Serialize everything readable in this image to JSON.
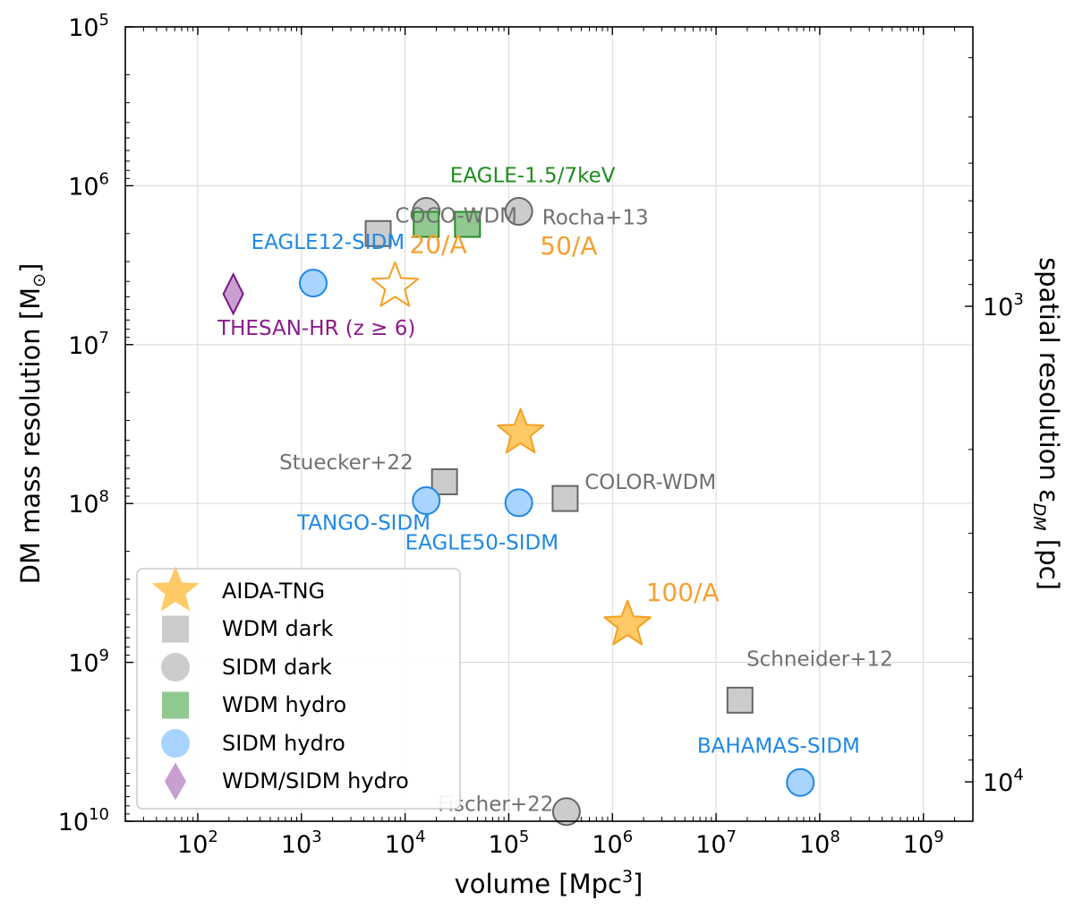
{
  "chart_data": {
    "type": "scatter",
    "xlabel": "volume [Mpc",
    "xlabel_sup": "3",
    "xlabel_end": "]",
    "ylabel": "DM mass resolution [M",
    "ylabel_end": "]",
    "ylabel_right": "spatial resolution ε",
    "ylabel_right_sub": "DM",
    "ylabel_right_end": " [pc]",
    "x_scale": "log",
    "y_scale": "log",
    "y_inverted": true,
    "xlim": [
      20,
      3000000000
    ],
    "ylim": [
      100000,
      10000000000
    ],
    "grid": true,
    "legend_position": "lower-left",
    "x_ticks": [
      {
        "value": 100,
        "base": "10",
        "exp": "2"
      },
      {
        "value": 1000,
        "base": "10",
        "exp": "3"
      },
      {
        "value": 10000,
        "base": "10",
        "exp": "4"
      },
      {
        "value": 100000,
        "base": "10",
        "exp": "5"
      },
      {
        "value": 1000000,
        "base": "10",
        "exp": "6"
      },
      {
        "value": 10000000,
        "base": "10",
        "exp": "7"
      },
      {
        "value": 100000000,
        "base": "10",
        "exp": "8"
      },
      {
        "value": 1000000000,
        "base": "10",
        "exp": "9"
      }
    ],
    "y_ticks": [
      {
        "value": 100000,
        "base": "10",
        "exp": "5"
      },
      {
        "value": 1000000,
        "base": "10",
        "exp": "6"
      },
      {
        "value": 10000000,
        "base": "10",
        "exp": "7"
      },
      {
        "value": 100000000,
        "base": "10",
        "exp": "8"
      },
      {
        "value": 1000000000,
        "base": "10",
        "exp": "9"
      },
      {
        "value": 10000000000,
        "base": "10",
        "exp": "10"
      }
    ],
    "y_right_ticks": [
      {
        "pc": 1000,
        "base": "10",
        "exp": "3"
      },
      {
        "pc": 10000,
        "base": "10",
        "exp": "4"
      }
    ],
    "colors": {
      "aida": "#ffc966",
      "aida_edge": "#f5a020",
      "aida_label": "#f5a030",
      "grey_fill": "#cccccc",
      "grey_edge": "#666666",
      "grey_label": "#707070",
      "green_fill": "#90c990",
      "green_edge": "#2a8a2a",
      "green_label": "#1e8c1e",
      "blue_fill": "#a8d4ff",
      "blue_edge": "#1e88e5",
      "blue_label": "#1e88e5",
      "purple_fill": "#c79fd0",
      "purple_edge": "#7b1a85",
      "purple_label": "#8b1a8b"
    },
    "legend": [
      {
        "label": "AIDA-TNG",
        "marker": "star",
        "fill": "aida",
        "edge": "none"
      },
      {
        "label": "WDM dark",
        "marker": "square",
        "fill": "grey_fill",
        "edge": "none"
      },
      {
        "label": "SIDM dark",
        "marker": "circle",
        "fill": "grey_fill",
        "edge": "none"
      },
      {
        "label": "WDM hydro",
        "marker": "square",
        "fill": "green_fill",
        "edge": "none"
      },
      {
        "label": "SIDM hydro",
        "marker": "circle",
        "fill": "blue_fill",
        "edge": "none"
      },
      {
        "label": "WDM/SIDM hydro",
        "marker": "diamond",
        "fill": "purple_fill",
        "edge": "none"
      }
    ],
    "points": [
      {
        "x": 8000,
        "y": 4300000,
        "marker": "star",
        "fill": "none",
        "edge": "aida_edge"
      },
      {
        "x": 130000,
        "y": 36000000,
        "marker": "star",
        "fill": "aida",
        "edge": "aida_edge"
      },
      {
        "x": 1400000,
        "y": 580000000,
        "marker": "star",
        "fill": "aida",
        "edge": "aida_edge"
      },
      {
        "x": 5500,
        "y": 2000000,
        "marker": "square",
        "fill": "grey_fill",
        "edge": "grey_edge"
      },
      {
        "x": 24000,
        "y": 73000000,
        "marker": "square",
        "fill": "grey_fill",
        "edge": "grey_edge"
      },
      {
        "x": 350000,
        "y": 93000000,
        "marker": "square",
        "fill": "grey_fill",
        "edge": "grey_edge"
      },
      {
        "x": 17000000,
        "y": 1730000000,
        "marker": "square",
        "fill": "grey_fill",
        "edge": "grey_edge"
      },
      {
        "x": 16000,
        "y": 1450000,
        "marker": "circle",
        "fill": "grey_fill",
        "edge": "grey_edge"
      },
      {
        "x": 125000,
        "y": 1450000,
        "marker": "circle",
        "fill": "grey_fill",
        "edge": "grey_edge"
      },
      {
        "x": 360000,
        "y": 8700000000,
        "marker": "circle",
        "fill": "grey_fill",
        "edge": "grey_edge"
      },
      {
        "x": 16000,
        "y": 1750000,
        "marker": "square",
        "fill": "green_fill",
        "edge": "green_edge"
      },
      {
        "x": 40000,
        "y": 1750000,
        "marker": "square",
        "fill": "green_fill",
        "edge": "green_edge"
      },
      {
        "x": 1300,
        "y": 4100000,
        "marker": "circle",
        "fill": "blue_fill",
        "edge": "blue_edge"
      },
      {
        "x": 16000,
        "y": 96000000,
        "marker": "circle",
        "fill": "blue_fill",
        "edge": "blue_edge"
      },
      {
        "x": 125000,
        "y": 99000000,
        "marker": "circle",
        "fill": "blue_fill",
        "edge": "blue_edge"
      },
      {
        "x": 65000000,
        "y": 5700000000,
        "marker": "circle",
        "fill": "blue_fill",
        "edge": "blue_edge"
      },
      {
        "x": 220,
        "y": 4800000,
        "marker": "diamond",
        "fill": "purple_fill",
        "edge": "purple_edge"
      }
    ],
    "annotations": [
      {
        "text": "20/A",
        "x": 11000,
        "y": 2650000,
        "color": "aida_label",
        "size": 28,
        "anchor": "start"
      },
      {
        "text": "50/A",
        "x": 200000,
        "y": 2700000,
        "color": "aida_label",
        "size": 28,
        "anchor": "start"
      },
      {
        "text": "100/A",
        "x": 2100000,
        "y": 410000000,
        "color": "aida_label",
        "size": 28,
        "anchor": "start"
      },
      {
        "text": "COCO-WDM",
        "x": 8000,
        "y": 1700000,
        "color": "grey_label",
        "size": 23,
        "anchor": "start"
      },
      {
        "text": "Rocha+13",
        "x": 210000,
        "y": 1750000,
        "color": "grey_label",
        "size": 23,
        "anchor": "start"
      },
      {
        "text": "Stuecker+22",
        "x": 12000,
        "y": 61000000,
        "color": "grey_label",
        "size": 23,
        "anchor": "end"
      },
      {
        "text": "COLOR-WDM",
        "x": 540000,
        "y": 81000000,
        "color": "grey_label",
        "size": 23,
        "anchor": "start"
      },
      {
        "text": "Fischer+22",
        "x": 270000,
        "y": 8600000000,
        "color": "grey_label",
        "size": 23,
        "anchor": "end"
      },
      {
        "text": "Schneider+12",
        "x": 100000000,
        "y": 1050000000,
        "color": "grey_label",
        "size": 23,
        "anchor": "middle"
      },
      {
        "text": "EAGLE-1.5/7keV",
        "x": 170000,
        "y": 950000,
        "color": "green_label",
        "size": 23,
        "anchor": "middle"
      },
      {
        "text": "EAGLE12-SIDM",
        "x": 1800,
        "y": 2500000,
        "color": "blue_label",
        "size": 23,
        "anchor": "middle"
      },
      {
        "text": "TANGO-SIDM",
        "x": 4000,
        "y": 146000000,
        "color": "blue_label",
        "size": 23,
        "anchor": "middle"
      },
      {
        "text": "EAGLE50-SIDM",
        "x": 55000,
        "y": 195000000,
        "color": "blue_label",
        "size": 23,
        "anchor": "middle"
      },
      {
        "text": "BAHAMAS-SIDM",
        "x": 40000000,
        "y": 3700000000,
        "color": "blue_label",
        "size": 23,
        "anchor": "middle"
      },
      {
        "text": "THESAN-HR (z ≥ 6)",
        "x": 1400,
        "y": 8700000,
        "color": "purple_label",
        "size": 23,
        "anchor": "middle"
      }
    ]
  }
}
